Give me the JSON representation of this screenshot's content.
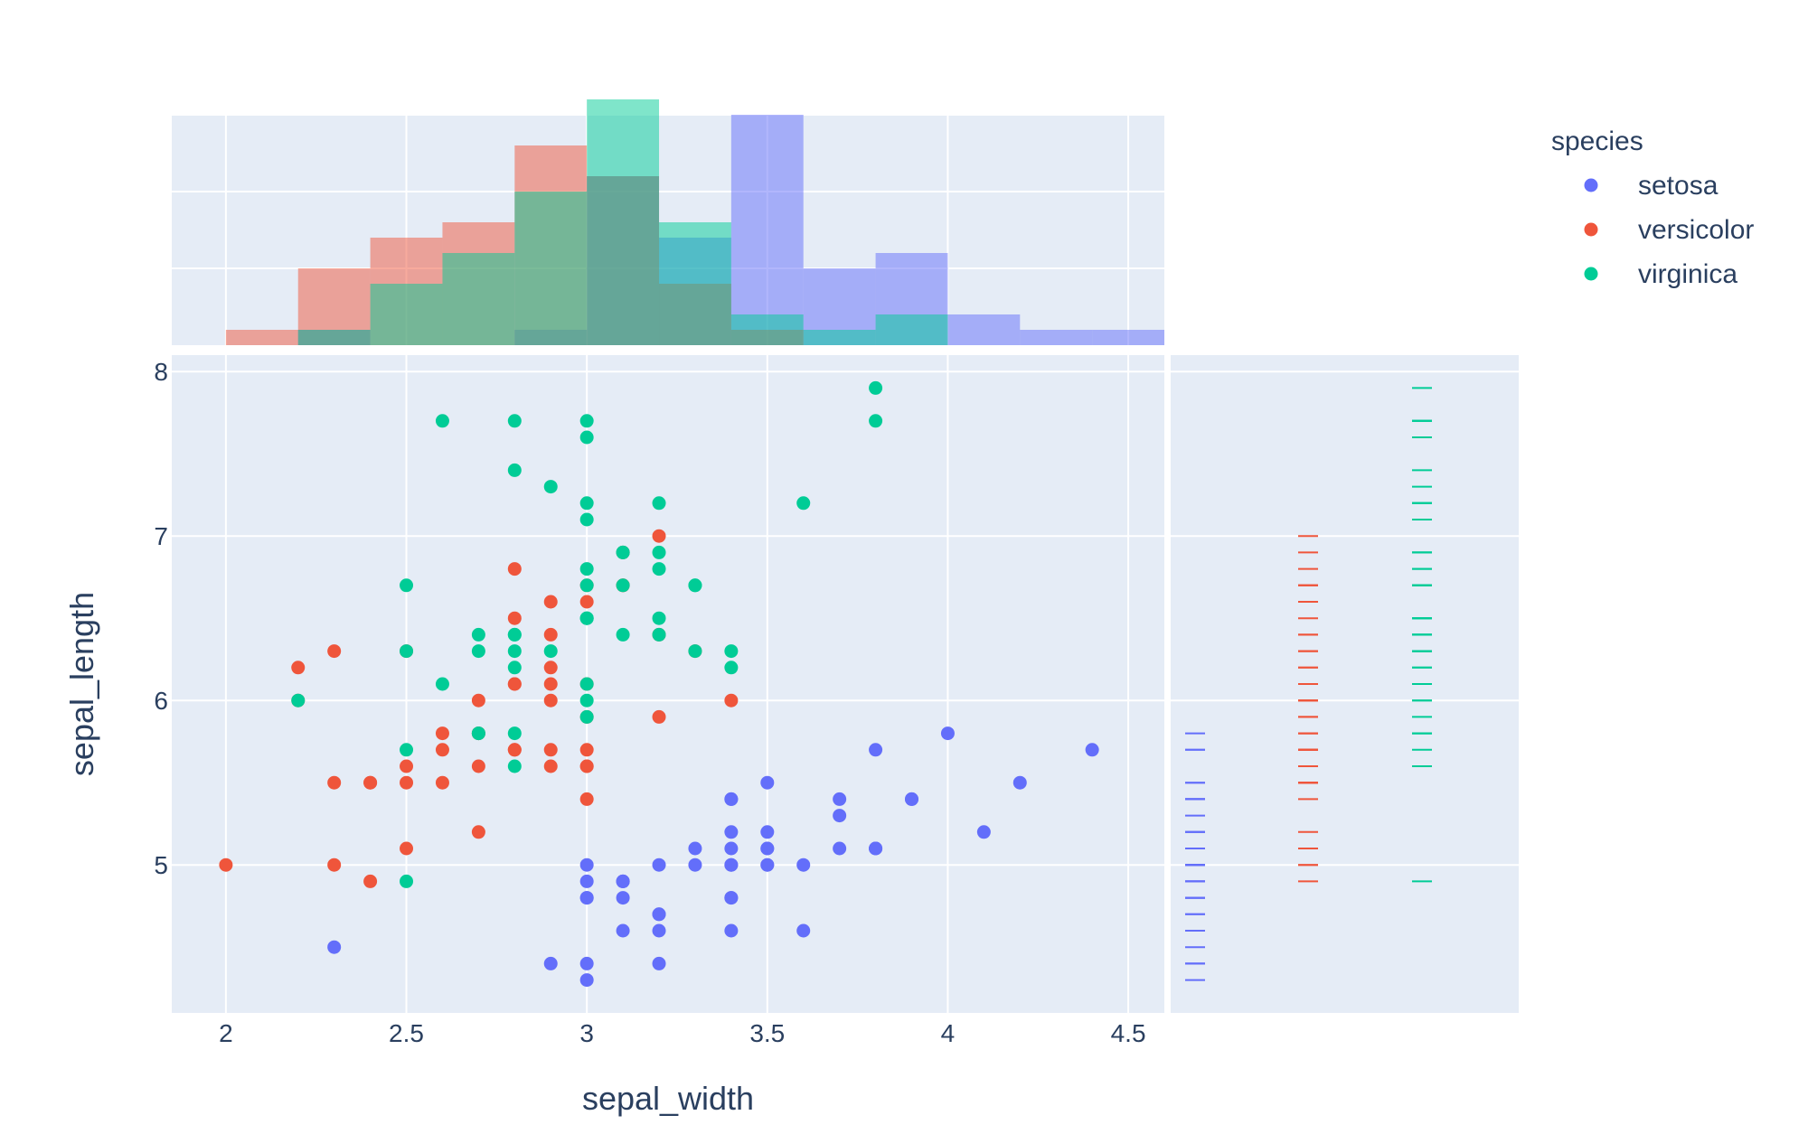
{
  "chart_data": {
    "type": "scatter",
    "title": "",
    "xlabel": "sepal_width",
    "ylabel": "sepal_length",
    "xlim": [
      1.85,
      4.6
    ],
    "ylim": [
      4.1,
      8.1
    ],
    "x_ticks": [
      "2",
      "2.5",
      "3",
      "3.5",
      "4",
      "4.5"
    ],
    "y_ticks": [
      "5",
      "6",
      "7",
      "8"
    ],
    "grid": true,
    "legend": {
      "title": "species",
      "placement": "top-right"
    },
    "series": [
      {
        "name": "setosa",
        "color": "#636efa",
        "points": [
          [
            3.5,
            5.1
          ],
          [
            3.0,
            4.9
          ],
          [
            3.2,
            4.7
          ],
          [
            3.1,
            4.6
          ],
          [
            3.6,
            5.0
          ],
          [
            3.9,
            5.4
          ],
          [
            3.4,
            4.6
          ],
          [
            3.4,
            5.0
          ],
          [
            2.9,
            4.4
          ],
          [
            3.1,
            4.9
          ],
          [
            3.7,
            5.4
          ],
          [
            3.4,
            4.8
          ],
          [
            3.0,
            4.8
          ],
          [
            3.0,
            4.3
          ],
          [
            4.0,
            5.8
          ],
          [
            4.4,
            5.7
          ],
          [
            3.9,
            5.4
          ],
          [
            3.5,
            5.1
          ],
          [
            3.8,
            5.7
          ],
          [
            3.8,
            5.1
          ],
          [
            3.4,
            5.4
          ],
          [
            3.7,
            5.1
          ],
          [
            3.6,
            4.6
          ],
          [
            3.3,
            5.1
          ],
          [
            3.4,
            4.8
          ],
          [
            3.0,
            5.0
          ],
          [
            3.4,
            5.0
          ],
          [
            3.5,
            5.2
          ],
          [
            3.4,
            5.2
          ],
          [
            3.2,
            4.7
          ],
          [
            3.1,
            4.8
          ],
          [
            3.4,
            5.4
          ],
          [
            4.1,
            5.2
          ],
          [
            4.2,
            5.5
          ],
          [
            3.1,
            4.9
          ],
          [
            3.2,
            5.0
          ],
          [
            3.5,
            5.5
          ],
          [
            3.1,
            4.9
          ],
          [
            3.0,
            4.4
          ],
          [
            3.4,
            5.1
          ],
          [
            3.5,
            5.0
          ],
          [
            2.3,
            4.5
          ],
          [
            3.2,
            4.4
          ],
          [
            3.5,
            5.0
          ],
          [
            3.8,
            5.1
          ],
          [
            3.0,
            4.8
          ],
          [
            3.8,
            5.1
          ],
          [
            3.2,
            4.6
          ],
          [
            3.7,
            5.3
          ],
          [
            3.3,
            5.0
          ]
        ]
      },
      {
        "name": "versicolor",
        "color": "#ef553b",
        "points": [
          [
            3.2,
            7.0
          ],
          [
            3.2,
            6.4
          ],
          [
            3.1,
            6.9
          ],
          [
            2.3,
            5.5
          ],
          [
            2.8,
            6.5
          ],
          [
            2.8,
            5.7
          ],
          [
            3.3,
            6.3
          ],
          [
            2.4,
            4.9
          ],
          [
            2.9,
            6.6
          ],
          [
            2.7,
            5.2
          ],
          [
            2.0,
            5.0
          ],
          [
            3.0,
            5.9
          ],
          [
            2.2,
            6.0
          ],
          [
            2.9,
            6.1
          ],
          [
            2.9,
            5.6
          ],
          [
            3.1,
            6.7
          ],
          [
            3.0,
            5.6
          ],
          [
            2.7,
            5.8
          ],
          [
            2.2,
            6.2
          ],
          [
            2.5,
            5.6
          ],
          [
            3.2,
            5.9
          ],
          [
            2.8,
            6.1
          ],
          [
            2.5,
            6.3
          ],
          [
            2.8,
            6.1
          ],
          [
            2.9,
            6.4
          ],
          [
            3.0,
            6.6
          ],
          [
            2.8,
            6.8
          ],
          [
            3.0,
            6.7
          ],
          [
            2.9,
            6.0
          ],
          [
            2.6,
            5.7
          ],
          [
            2.4,
            5.5
          ],
          [
            2.4,
            5.5
          ],
          [
            2.7,
            5.8
          ],
          [
            2.7,
            6.0
          ],
          [
            3.0,
            5.4
          ],
          [
            3.4,
            6.0
          ],
          [
            3.1,
            6.7
          ],
          [
            2.3,
            6.3
          ],
          [
            3.0,
            5.6
          ],
          [
            2.5,
            5.5
          ],
          [
            2.6,
            5.5
          ],
          [
            3.0,
            6.1
          ],
          [
            2.6,
            5.8
          ],
          [
            2.3,
            5.0
          ],
          [
            2.7,
            5.6
          ],
          [
            3.0,
            5.7
          ],
          [
            2.9,
            5.7
          ],
          [
            2.9,
            6.2
          ],
          [
            2.5,
            5.1
          ],
          [
            2.8,
            5.7
          ]
        ]
      },
      {
        "name": "virginica",
        "color": "#00cc96",
        "points": [
          [
            3.3,
            6.3
          ],
          [
            2.7,
            5.8
          ],
          [
            3.0,
            7.1
          ],
          [
            2.9,
            6.3
          ],
          [
            3.0,
            6.5
          ],
          [
            3.0,
            7.6
          ],
          [
            2.5,
            4.9
          ],
          [
            2.9,
            7.3
          ],
          [
            2.5,
            6.7
          ],
          [
            3.6,
            7.2
          ],
          [
            3.2,
            6.5
          ],
          [
            2.7,
            6.4
          ],
          [
            3.0,
            6.8
          ],
          [
            2.5,
            5.7
          ],
          [
            2.8,
            5.8
          ],
          [
            3.2,
            6.4
          ],
          [
            3.0,
            6.5
          ],
          [
            3.8,
            7.7
          ],
          [
            2.6,
            7.7
          ],
          [
            2.2,
            6.0
          ],
          [
            3.2,
            6.9
          ],
          [
            2.8,
            5.6
          ],
          [
            2.8,
            7.7
          ],
          [
            2.7,
            6.3
          ],
          [
            3.3,
            6.7
          ],
          [
            3.2,
            7.2
          ],
          [
            2.8,
            6.2
          ],
          [
            3.0,
            6.1
          ],
          [
            2.8,
            6.4
          ],
          [
            3.0,
            7.2
          ],
          [
            2.8,
            7.4
          ],
          [
            3.8,
            7.9
          ],
          [
            2.8,
            6.4
          ],
          [
            2.8,
            6.3
          ],
          [
            2.6,
            6.1
          ],
          [
            3.0,
            7.7
          ],
          [
            3.4,
            6.3
          ],
          [
            3.1,
            6.4
          ],
          [
            3.0,
            6.0
          ],
          [
            3.1,
            6.9
          ],
          [
            3.1,
            6.7
          ],
          [
            3.1,
            6.9
          ],
          [
            2.7,
            5.8
          ],
          [
            3.2,
            6.8
          ],
          [
            3.3,
            6.7
          ],
          [
            3.0,
            6.7
          ],
          [
            2.5,
            6.3
          ],
          [
            3.0,
            6.5
          ],
          [
            3.4,
            6.2
          ],
          [
            3.0,
            5.9
          ]
        ]
      }
    ],
    "marginal_x": {
      "type": "histogram",
      "bin_width": 0.2,
      "bin_start": 2.0,
      "ymax": 15
    },
    "marginal_y": {
      "type": "rug"
    }
  }
}
